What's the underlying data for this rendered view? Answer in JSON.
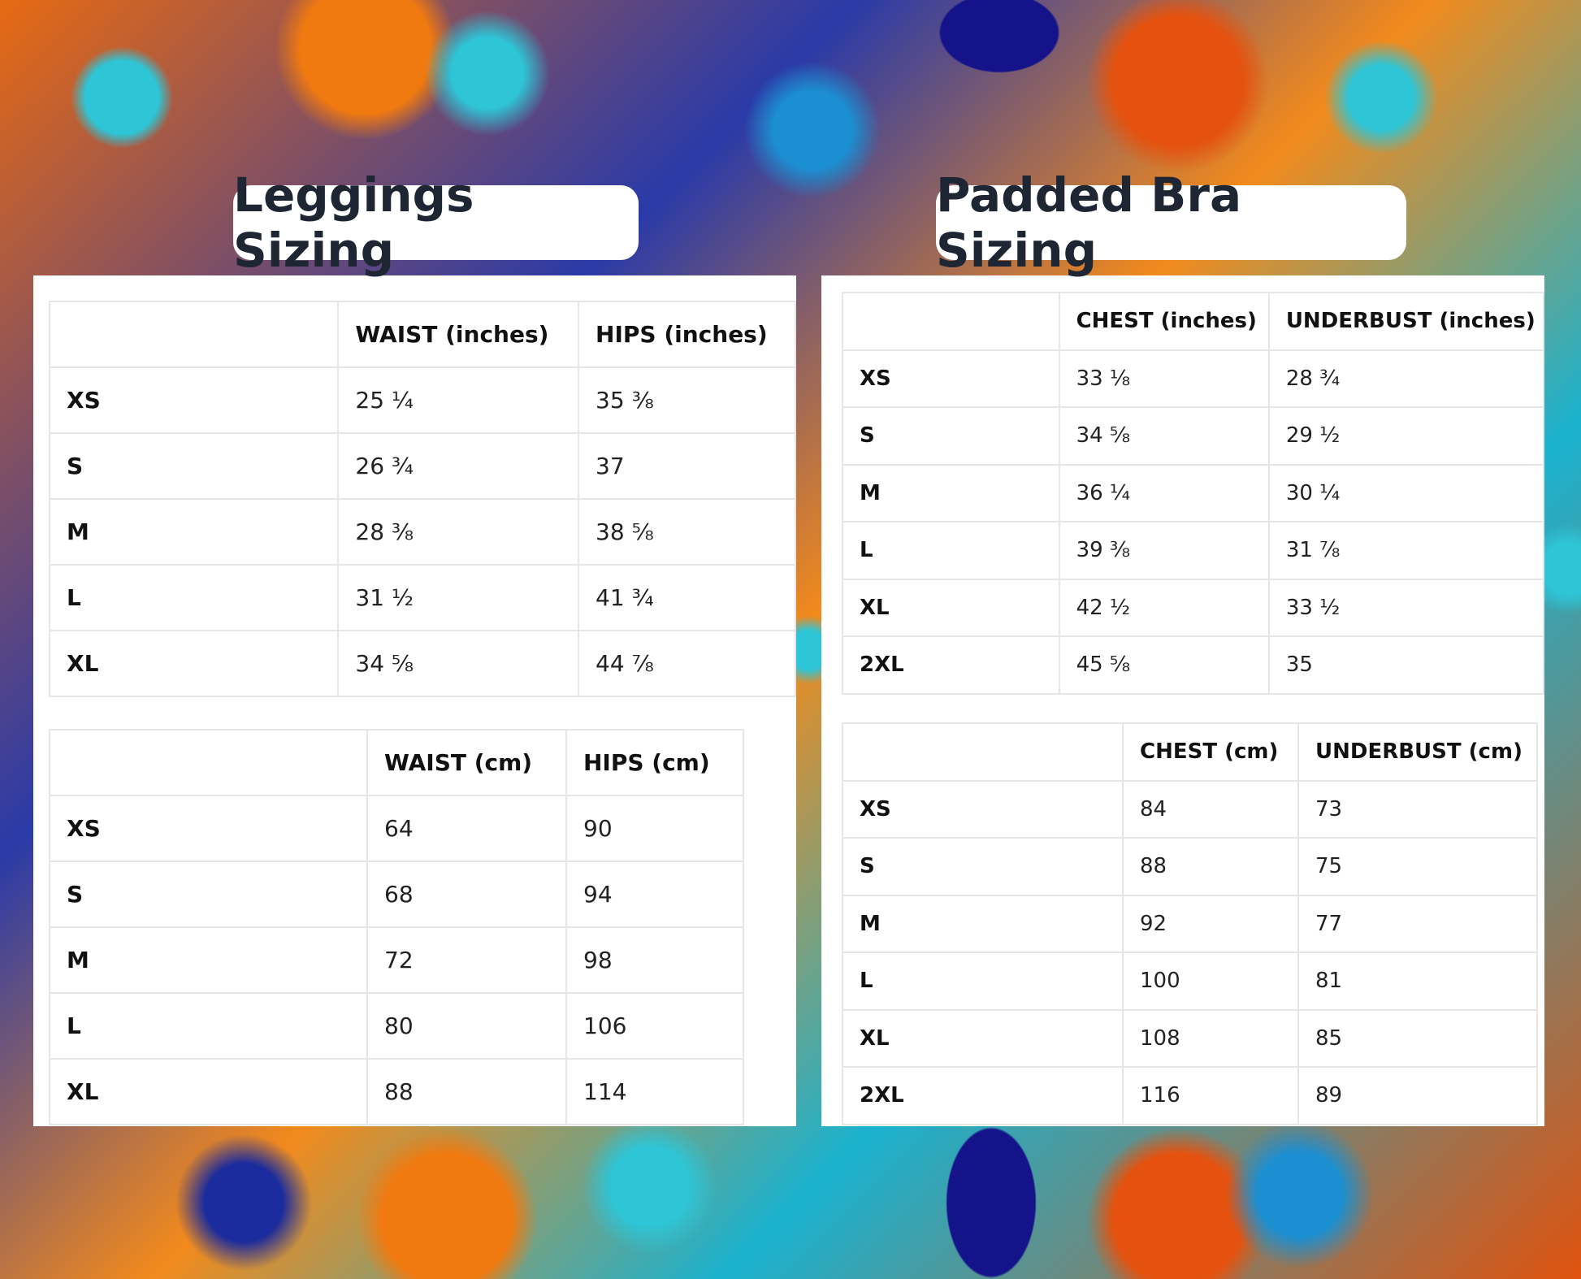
{
  "leggings": {
    "title": "Leggings Sizing",
    "tables": [
      {
        "header": [
          "WAIST (inches)",
          "HIPS (inches)"
        ],
        "rows": [
          [
            "XS",
            "25 ¼",
            "35 ⅜"
          ],
          [
            "S",
            "26 ¾",
            "37"
          ],
          [
            "M",
            "28 ⅜",
            "38 ⅝"
          ],
          [
            "L",
            "31 ½",
            "41 ¾"
          ],
          [
            "XL",
            "34 ⅝",
            "44 ⅞"
          ]
        ]
      },
      {
        "header": [
          "WAIST (cm)",
          "HIPS (cm)"
        ],
        "rows": [
          [
            "XS",
            64,
            90
          ],
          [
            "S",
            68,
            94
          ],
          [
            "M",
            72,
            98
          ],
          [
            "L",
            80,
            106
          ],
          [
            "XL",
            88,
            114
          ]
        ]
      }
    ]
  },
  "padded_bra": {
    "title": "Padded Bra Sizing",
    "tables": [
      {
        "header": [
          "CHEST (inches)",
          "UNDERBUST (inches)"
        ],
        "rows": [
          [
            "XS",
            "33 ⅛",
            "28 ¾"
          ],
          [
            "S",
            "34 ⅝",
            "29 ½"
          ],
          [
            "M",
            "36 ¼",
            "30 ¼"
          ],
          [
            "L",
            "39 ⅜",
            "31 ⅞"
          ],
          [
            "XL",
            "42 ½",
            "33 ½"
          ],
          [
            "2XL",
            "45 ⅝",
            "35"
          ]
        ]
      },
      {
        "header": [
          "CHEST (cm)",
          "UNDERBUST (cm)"
        ],
        "rows": [
          [
            "XS",
            84,
            73
          ],
          [
            "S",
            88,
            75
          ],
          [
            "M",
            92,
            77
          ],
          [
            "L",
            100,
            81
          ],
          [
            "XL",
            108,
            85
          ],
          [
            "2XL",
            116,
            89
          ]
        ]
      }
    ]
  }
}
